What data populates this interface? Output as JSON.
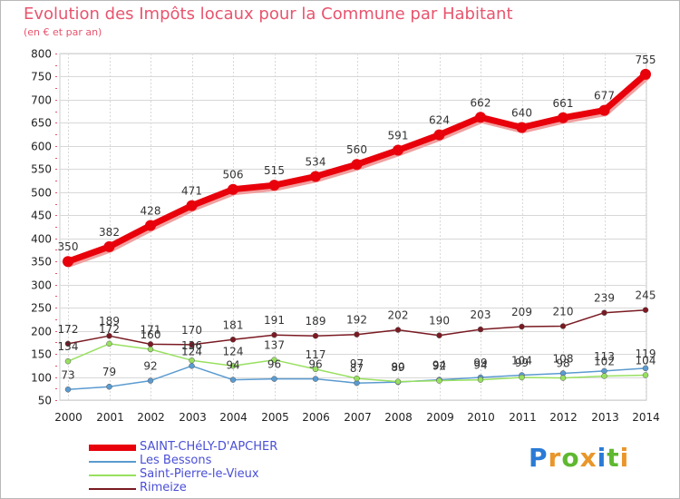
{
  "title": "Evolution des Impôts locaux pour la Commune par Habitant",
  "subtitle": "(en € et par an)",
  "logo": {
    "text": "Proxiti",
    "letters": [
      {
        "ch": "P",
        "color": "#2b7bd6"
      },
      {
        "ch": "r",
        "color": "#e9962a"
      },
      {
        "ch": "o",
        "color": "#5fb830"
      },
      {
        "ch": "x",
        "color": "#e9962a"
      },
      {
        "ch": "i",
        "color": "#2b7bd6"
      },
      {
        "ch": "t",
        "color": "#5fb830"
      },
      {
        "ch": "i",
        "color": "#e9962a"
      }
    ]
  },
  "chart_data": {
    "type": "line",
    "x": [
      2000,
      2001,
      2002,
      2003,
      2004,
      2005,
      2006,
      2007,
      2008,
      2009,
      2010,
      2011,
      2012,
      2013,
      2014
    ],
    "ylim": [
      50,
      800
    ],
    "yticks": [
      50,
      100,
      150,
      200,
      250,
      300,
      350,
      400,
      450,
      500,
      550,
      600,
      650,
      700,
      750,
      800
    ],
    "grid": true,
    "legend_position": "bottom-left",
    "series": [
      {
        "name": "SAINT-CHéLY-D'APCHER",
        "color": "#e8000b",
        "values": [
          350,
          382,
          428,
          471,
          506,
          515,
          534,
          560,
          591,
          624,
          662,
          640,
          661,
          677,
          755
        ],
        "labels": [
          "350",
          "382",
          "428",
          "471",
          "506",
          "515",
          "534",
          "560",
          "591",
          "624",
          "662",
          "640",
          "661",
          "677",
          "755"
        ]
      },
      {
        "name": "Les Bessons",
        "color": "#5b9bd0",
        "values": [
          73,
          79,
          92,
          124,
          94,
          96,
          96,
          87,
          89,
          94,
          99,
          104,
          108,
          113,
          119
        ],
        "labels": [
          "73",
          "79",
          "92",
          "124",
          "94",
          "96",
          "96",
          "87",
          "89",
          "94",
          "99",
          "104",
          "108",
          "113",
          "119"
        ]
      },
      {
        "name": "Saint-Pierre-le-Vieux",
        "color": "#98e060",
        "values": [
          134,
          172,
          160,
          136,
          124,
          137,
          117,
          97,
          90,
          92,
          94,
          99,
          98,
          102,
          104
        ],
        "labels": [
          "134",
          "172",
          "160",
          "136",
          "124",
          "137",
          "117",
          "97",
          "90",
          "92",
          "94",
          "99",
          "98",
          "102",
          "104"
        ]
      },
      {
        "name": "Rimeize",
        "color": "#7a1a22",
        "values": [
          172,
          189,
          171,
          170,
          181,
          191,
          189,
          192,
          202,
          190,
          203,
          209,
          210,
          239,
          245
        ],
        "labels": [
          "172",
          "189",
          "171",
          "170",
          "181",
          "191",
          "189",
          "192",
          "202",
          "190",
          "203",
          "209",
          "210",
          "239",
          "245"
        ]
      }
    ]
  }
}
